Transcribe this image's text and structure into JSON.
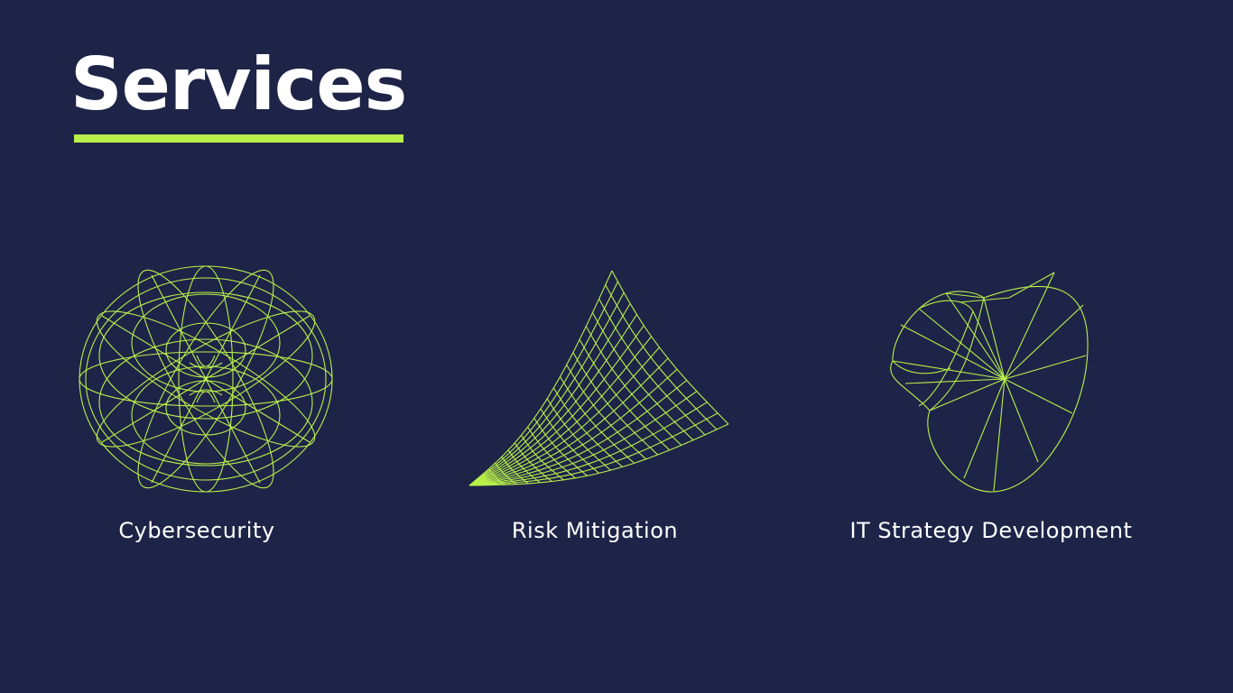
{
  "colors": {
    "background": "#1e2447",
    "accent": "#b9f04b",
    "text": "#ffffff"
  },
  "title": "Services",
  "services": [
    {
      "label": "Cybersecurity",
      "icon": "wireframe-torus-icon"
    },
    {
      "label": "Risk Mitigation",
      "icon": "wireframe-surface-icon"
    },
    {
      "label": "IT Strategy Development",
      "icon": "wireframe-cone-icon"
    }
  ]
}
